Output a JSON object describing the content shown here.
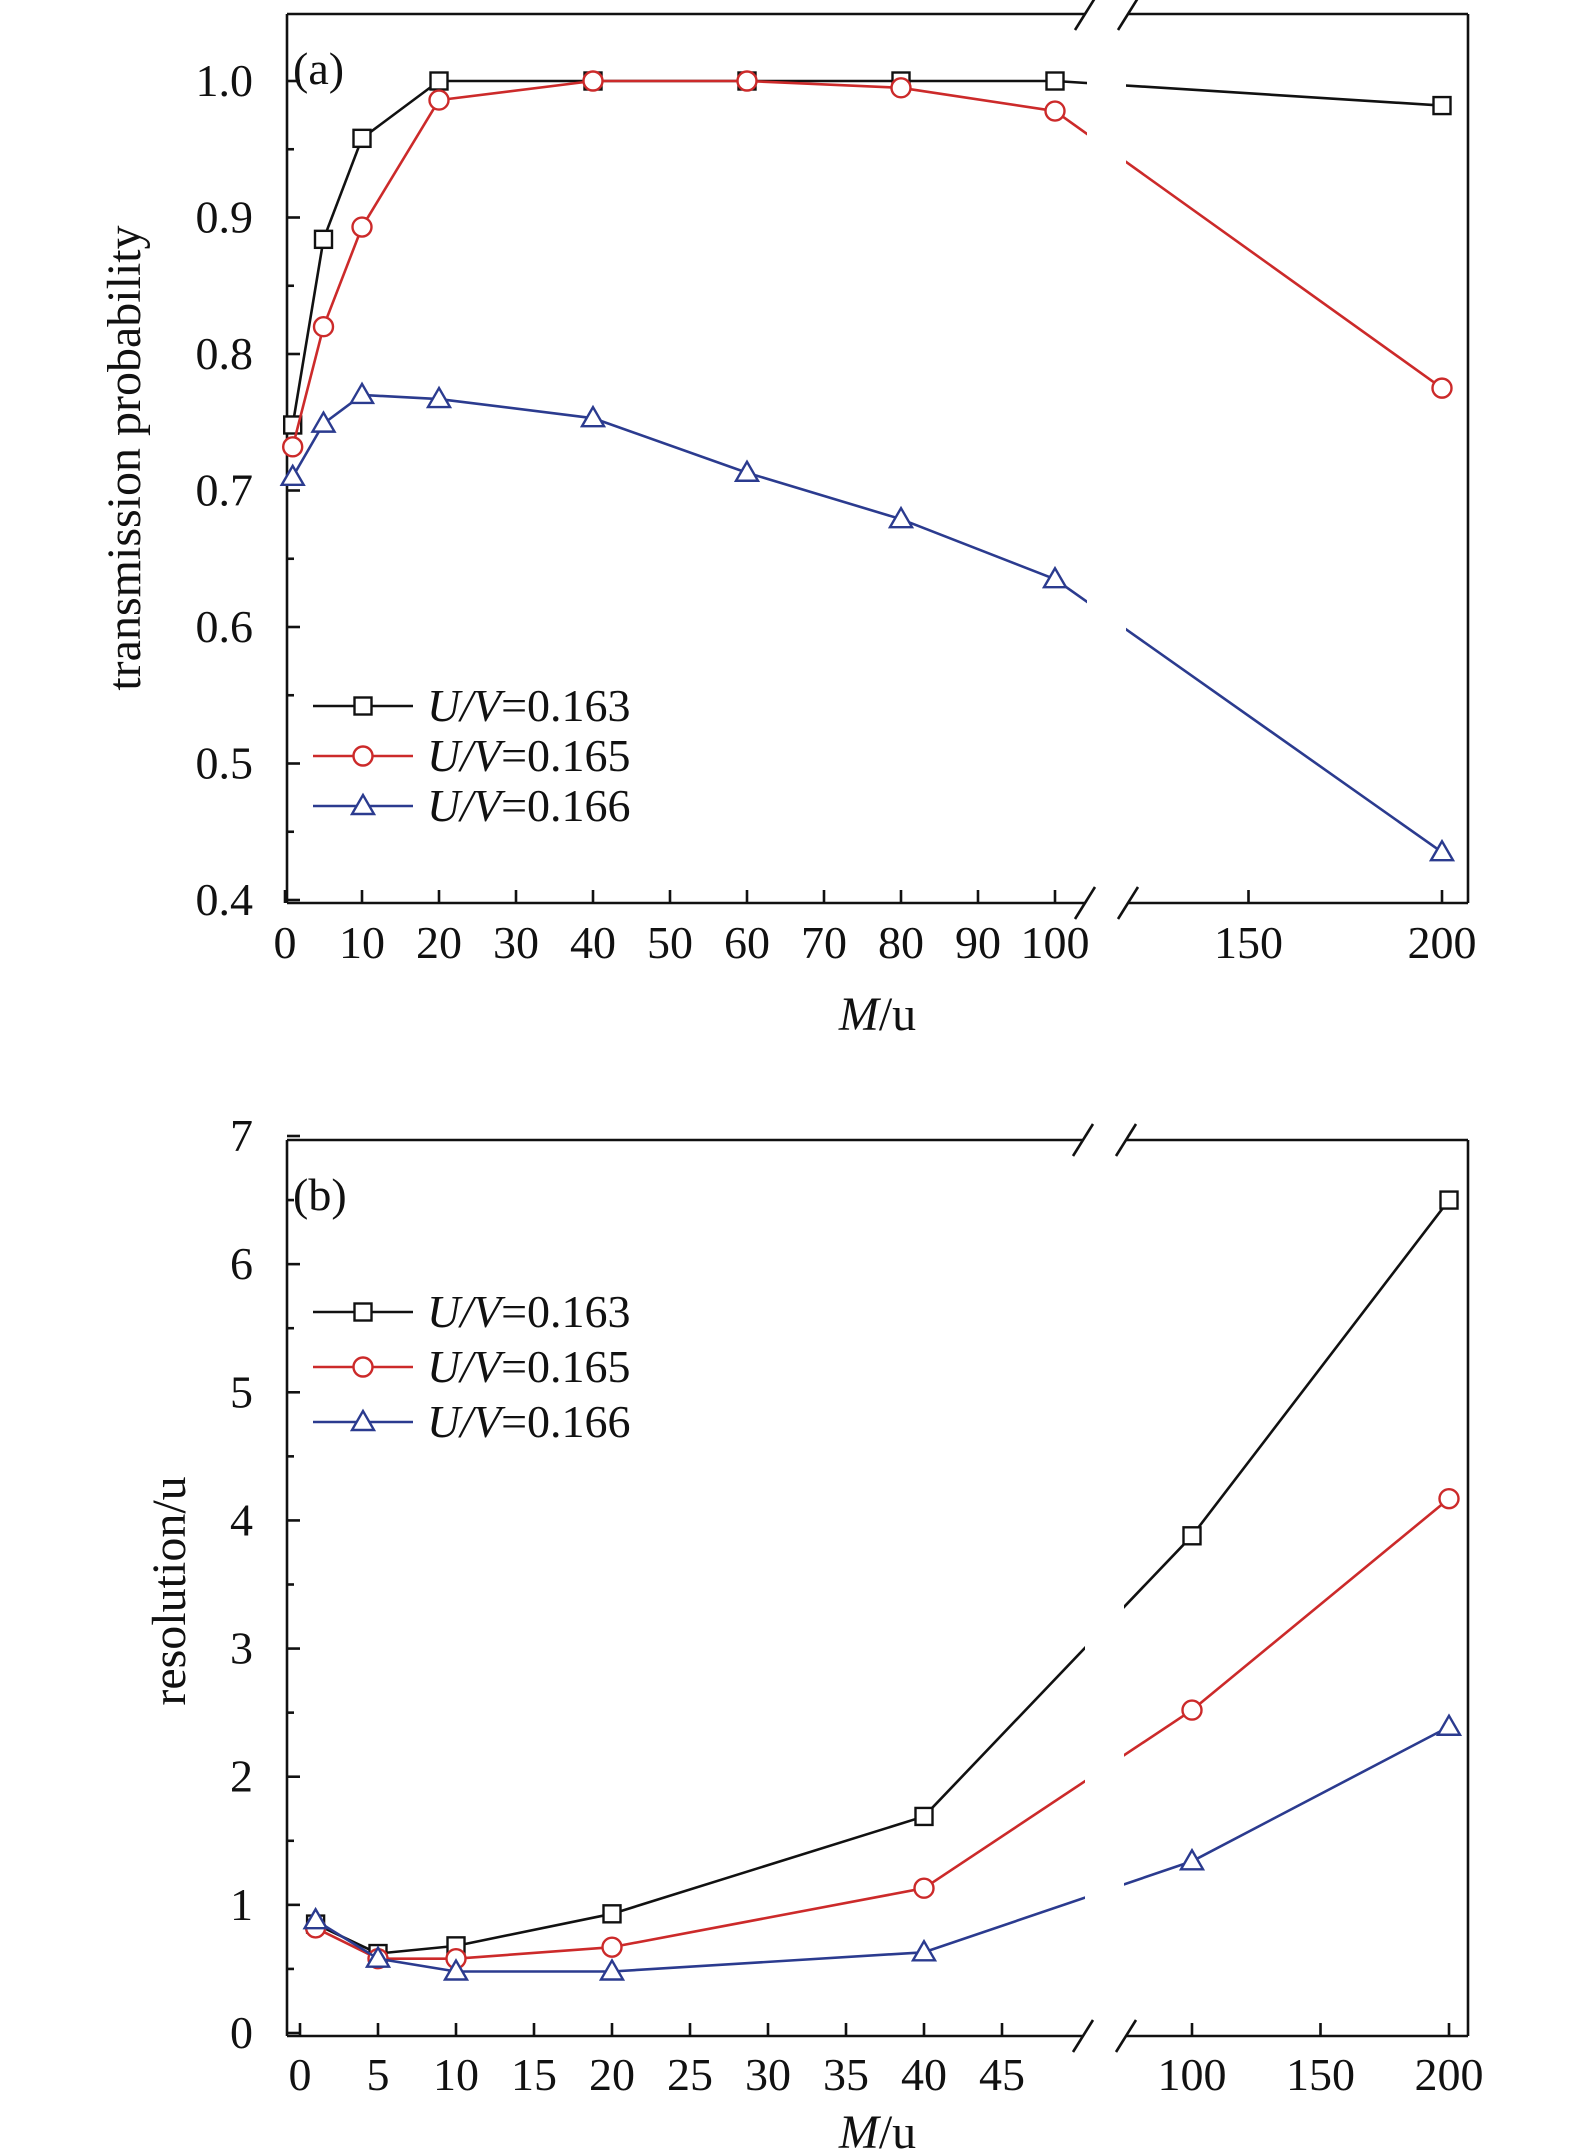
{
  "chart_data": [
    {
      "panel_label": "(a)",
      "type": "line",
      "ylabel": "transmission probability",
      "xlabel_italic": "M",
      "xlabel_rest": "/u",
      "x_broken_axis": true,
      "ylim": [
        0.4,
        1.05
      ],
      "yticks": [
        "0.4",
        "0.5",
        "0.6",
        "0.7",
        "0.8",
        "0.9",
        "1.0"
      ],
      "xticks": [
        "0",
        "10",
        "20",
        "30",
        "40",
        "50",
        "60",
        "70",
        "80",
        "90",
        "100",
        "150",
        "200"
      ],
      "legend_position": "bottom-left",
      "series": [
        {
          "name_italic": "U/V",
          "name_rest": "=0.163",
          "color": "#111111",
          "marker": "square",
          "x": [
            1,
            5,
            10,
            20,
            40,
            60,
            80,
            100,
            200
          ],
          "y": [
            0.748,
            0.884,
            0.958,
            1.0,
            1.0,
            1.0,
            1.0,
            1.0,
            0.982
          ]
        },
        {
          "name_italic": "U/V",
          "name_rest": "=0.165",
          "color": "#cc2a2a",
          "marker": "circle",
          "x": [
            1,
            5,
            10,
            20,
            40,
            60,
            80,
            100,
            200
          ],
          "y": [
            0.732,
            0.82,
            0.893,
            0.986,
            1.0,
            1.0,
            0.995,
            0.978,
            0.775
          ]
        },
        {
          "name_italic": "U/V",
          "name_rest": "=0.166",
          "color": "#2b3b8f",
          "marker": "triangle",
          "x": [
            1,
            5,
            10,
            20,
            40,
            60,
            80,
            100,
            200
          ],
          "y": [
            0.71,
            0.749,
            0.77,
            0.767,
            0.753,
            0.713,
            0.679,
            0.635,
            0.435
          ]
        }
      ]
    },
    {
      "panel_label": "(b)",
      "type": "line",
      "ylabel": "resolution/u",
      "xlabel_italic": "M",
      "xlabel_rest": "/u",
      "x_broken_axis": true,
      "ylim": [
        0,
        7
      ],
      "yticks": [
        "0",
        "1",
        "2",
        "3",
        "4",
        "5",
        "6",
        "7"
      ],
      "xticks": [
        "0",
        "5",
        "10",
        "15",
        "20",
        "25",
        "30",
        "35",
        "40",
        "45",
        "100",
        "150",
        "200"
      ],
      "legend_position": "top-left",
      "series": [
        {
          "name_italic": "U/V",
          "name_rest": "=0.163",
          "color": "#111111",
          "marker": "square",
          "x": [
            1,
            5,
            10,
            20,
            40,
            100,
            200
          ],
          "y": [
            0.85,
            0.62,
            0.68,
            0.93,
            1.69,
            3.88,
            6.5
          ]
        },
        {
          "name_italic": "U/V",
          "name_rest": "=0.165",
          "color": "#cc2a2a",
          "marker": "circle",
          "x": [
            1,
            5,
            10,
            20,
            40,
            100,
            200
          ],
          "y": [
            0.82,
            0.58,
            0.58,
            0.67,
            1.13,
            2.52,
            4.17
          ]
        },
        {
          "name_italic": "U/V",
          "name_rest": "=0.166",
          "color": "#2b3b8f",
          "marker": "triangle",
          "x": [
            1,
            5,
            10,
            20,
            40,
            100,
            200
          ],
          "y": [
            0.88,
            0.58,
            0.48,
            0.48,
            0.63,
            1.34,
            2.39
          ]
        }
      ]
    }
  ]
}
